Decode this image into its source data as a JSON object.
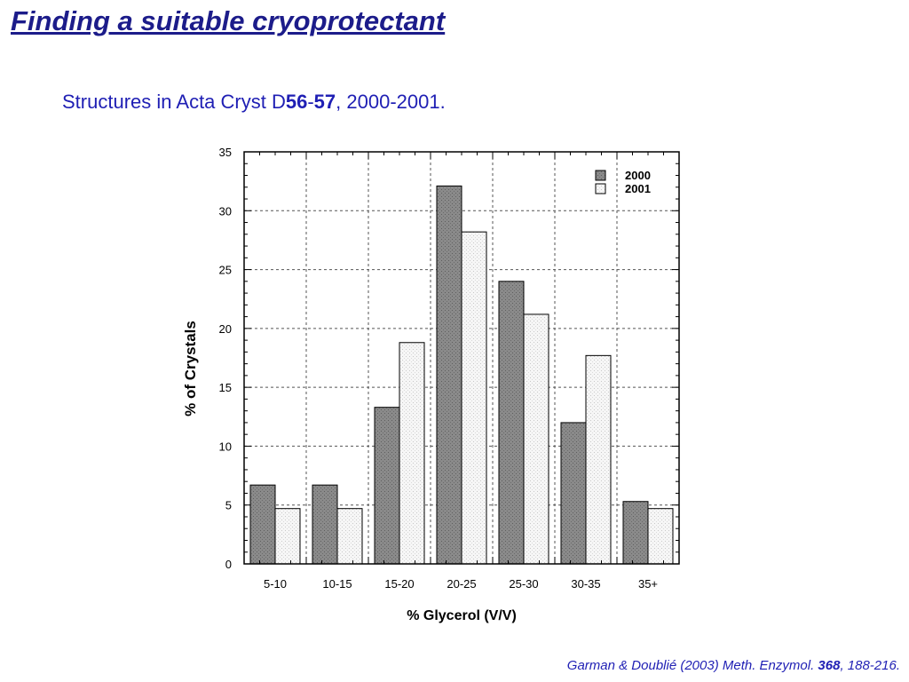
{
  "slide": {
    "title": "Finding a suitable cryoprotectant",
    "subtitle": {
      "prefix": "Structures in Acta Cryst D",
      "vol_a": "56",
      "dash": "-",
      "vol_b": "57",
      "suffix": ", 2000-2001."
    },
    "citation": {
      "prefix": "Garman & Doublié (2003) Meth. Enzymol. ",
      "volume": "368",
      "suffix": ", 188-216."
    }
  },
  "chart_data": {
    "type": "bar",
    "title": "",
    "xlabel": "% Glycerol (V/V)",
    "ylabel": "% of Crystals",
    "ylim": [
      0,
      35
    ],
    "yticks": [
      0,
      5,
      10,
      15,
      20,
      25,
      30,
      35
    ],
    "grid": true,
    "legend_position": "top-right",
    "categories": [
      "5-10",
      "10-15",
      "15-20",
      "20-25",
      "25-30",
      "30-35",
      "35+"
    ],
    "series": [
      {
        "name": "2000",
        "color": "#8a8a8a",
        "values": [
          6.7,
          6.7,
          13.3,
          32.1,
          24.0,
          12.0,
          5.3
        ]
      },
      {
        "name": "2001",
        "color": "#f4f4f4",
        "values": [
          4.7,
          4.7,
          18.8,
          28.2,
          21.2,
          17.7,
          4.7
        ]
      }
    ]
  }
}
